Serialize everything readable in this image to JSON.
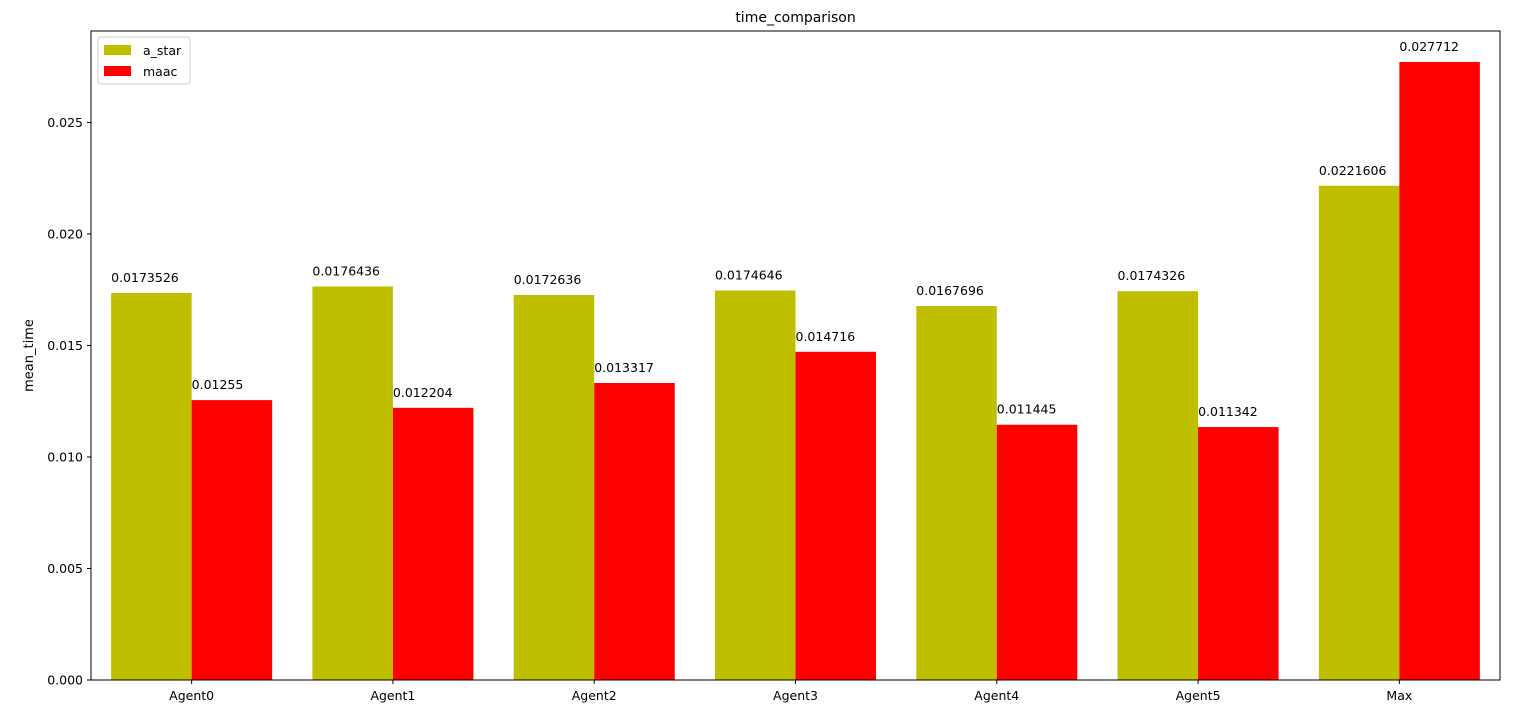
{
  "chart_data": {
    "type": "bar",
    "title": "time_comparison",
    "xlabel": "",
    "ylabel": "mean_time",
    "categories": [
      "Agent0",
      "Agent1",
      "Agent2",
      "Agent3",
      "Agent4",
      "Agent5",
      "Max"
    ],
    "series": [
      {
        "name": "a_star",
        "color": "#bfbf00",
        "values": [
          0.0173526,
          0.0176436,
          0.0172636,
          0.0174646,
          0.0167696,
          0.0174326,
          0.0221606
        ],
        "labels": [
          "0.0173526",
          "0.0176436",
          "0.0172636",
          "0.0174646",
          "0.0167696",
          "0.0174326",
          "0.0221606"
        ]
      },
      {
        "name": "maac",
        "color": "#ff0000",
        "values": [
          0.01255,
          0.012204,
          0.013317,
          0.014716,
          0.011445,
          0.011342,
          0.027712
        ],
        "labels": [
          "0.01255",
          "0.012204",
          "0.013317",
          "0.014716",
          "0.011445",
          "0.011342",
          "0.027712"
        ]
      }
    ],
    "ylim": [
      0,
      0.0291
    ],
    "yticks": [
      0.0,
      0.005,
      0.01,
      0.015,
      0.02,
      0.025
    ],
    "ytick_labels": [
      "0.000",
      "0.005",
      "0.010",
      "0.015",
      "0.020",
      "0.025"
    ],
    "grid": false,
    "legend_position": "top-left"
  }
}
